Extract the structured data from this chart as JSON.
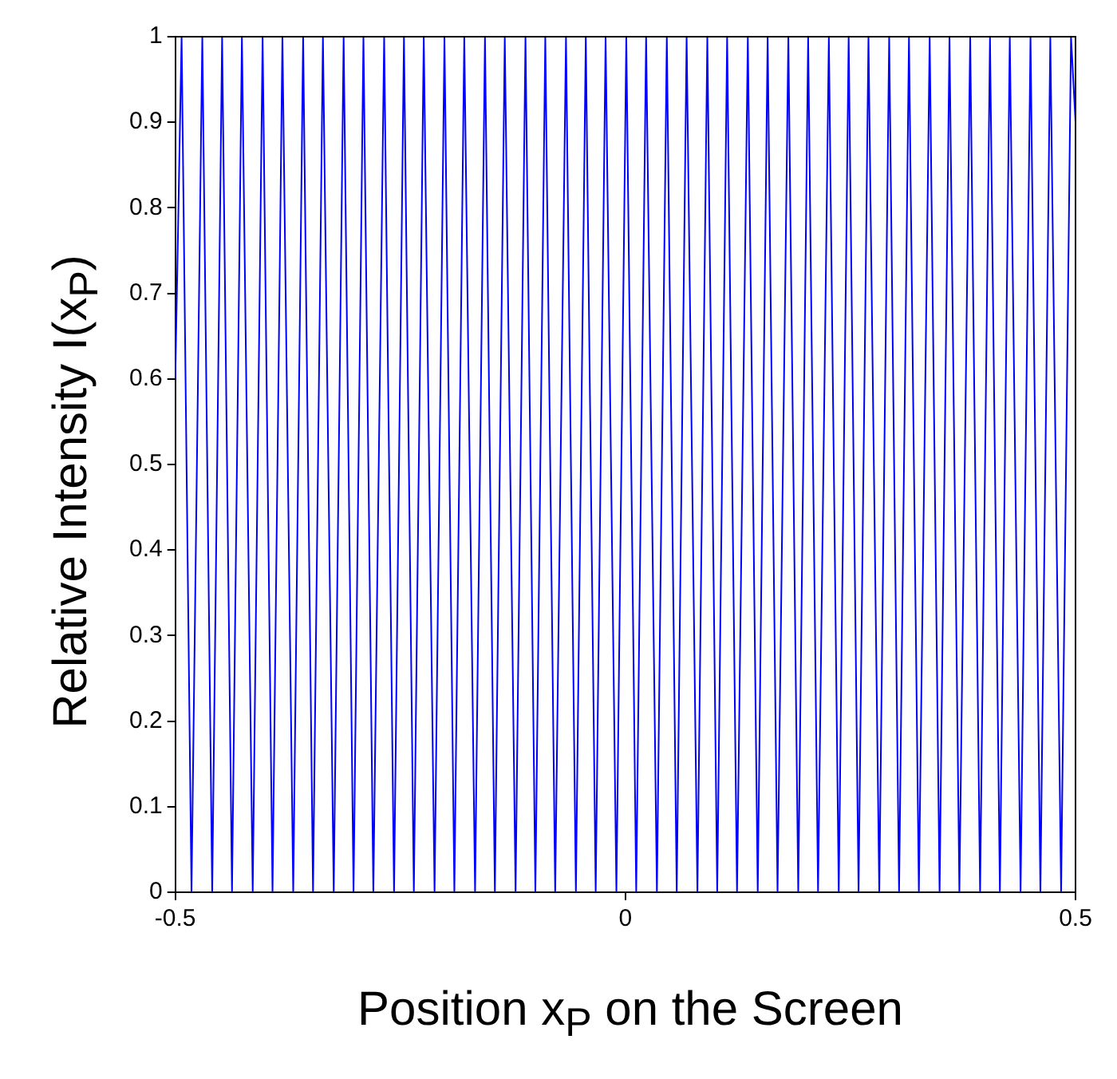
{
  "chart_data": {
    "type": "line",
    "xlabel": "Position x$_{P}$ on the Screen",
    "ylabel": "Relative Intensity I(x$_{P}$)",
    "x": [
      -0.5,
      -0.493,
      -0.482,
      -0.47,
      -0.459,
      -0.448,
      -0.437,
      -0.426,
      -0.414,
      -0.403,
      -0.392,
      -0.381,
      -0.369,
      -0.358,
      -0.347,
      -0.336,
      -0.324,
      -0.313,
      -0.302,
      -0.291,
      -0.28,
      -0.268,
      -0.257,
      -0.246,
      -0.235,
      -0.224,
      -0.212,
      -0.201,
      -0.19,
      -0.179,
      -0.167,
      -0.156,
      -0.145,
      -0.134,
      -0.122,
      -0.111,
      -0.1,
      -0.089,
      -0.078,
      -0.066,
      -0.055,
      -0.044,
      -0.033,
      -0.022,
      -0.01,
      0.001,
      0.012,
      0.023,
      0.035,
      0.046,
      0.057,
      0.068,
      0.08,
      0.091,
      0.102,
      0.113,
      0.124,
      0.136,
      0.147,
      0.158,
      0.169,
      0.181,
      0.192,
      0.203,
      0.214,
      0.226,
      0.237,
      0.248,
      0.259,
      0.27,
      0.282,
      0.293,
      0.304,
      0.315,
      0.326,
      0.338,
      0.349,
      0.36,
      0.371,
      0.383,
      0.394,
      0.405,
      0.416,
      0.427,
      0.439,
      0.45,
      0.461,
      0.472,
      0.484,
      0.495,
      0.5
    ],
    "series": [
      {
        "color": "#0000ff",
        "values": [
          0.6,
          1,
          0,
          1,
          0,
          1,
          0,
          1,
          0,
          1,
          0,
          1,
          0,
          1,
          0,
          1,
          0,
          1,
          0,
          1,
          0,
          1,
          0,
          1,
          0,
          1,
          0,
          1,
          0,
          1,
          0,
          1,
          0,
          1,
          0,
          1,
          0,
          1,
          0,
          1,
          0,
          1,
          0,
          1,
          0,
          1,
          0,
          1,
          0,
          1,
          0,
          1,
          0,
          1,
          0,
          1,
          0,
          1,
          0,
          1,
          0,
          1,
          0,
          1,
          0,
          1,
          0,
          1,
          0,
          1,
          0,
          1,
          0,
          1,
          0,
          1,
          0,
          1,
          0,
          1,
          0,
          1,
          0,
          1,
          0,
          1,
          0,
          1,
          0,
          1,
          0.9
        ]
      }
    ],
    "xlim": [
      -0.5,
      0.5
    ],
    "xticks": [
      -0.5,
      0,
      0.5
    ],
    "ylim": [
      0,
      1
    ],
    "yticks": [
      0,
      0.1,
      0.2,
      0.3,
      0.4,
      0.5,
      0.6,
      0.7,
      0.8,
      0.9,
      1
    ],
    "grid": false,
    "legend": false,
    "line_style": "solid",
    "marker": "none"
  }
}
